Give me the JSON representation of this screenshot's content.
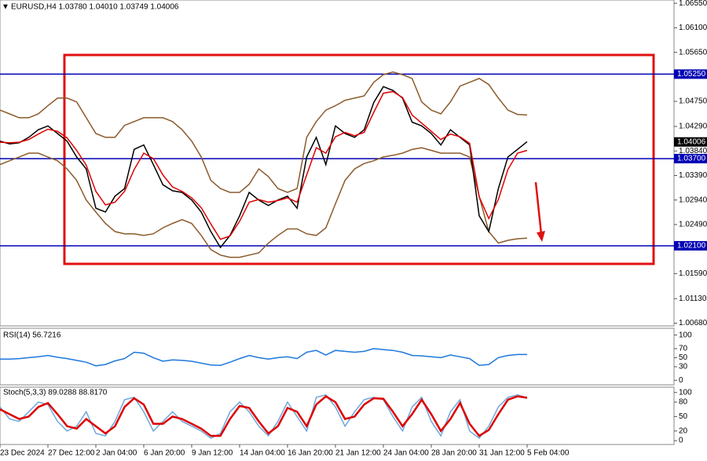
{
  "chart_data": [
    {
      "type": "line",
      "title": "EURUSD,H4 1.03780 1.04010 1.03749 1.04006",
      "categories": [
        "23 Dec 2024",
        null,
        null,
        null,
        null,
        "27 Dec 12:00",
        null,
        null,
        null,
        null,
        "2 Jan 04:00",
        null,
        null,
        null,
        null,
        "6 Jan 20:00",
        null,
        null,
        null,
        null,
        "9 Jan 12:00",
        null,
        null,
        null,
        null,
        "14 Jan 04:00",
        null,
        null,
        null,
        null,
        "16 Jan 20:00",
        null,
        null,
        null,
        null,
        "21 Jan 12:00",
        null,
        null,
        null,
        null,
        "24 Jan 04:00",
        null,
        null,
        null,
        null,
        "28 Jan 20:00",
        null,
        null,
        null,
        null,
        "31 Jan 12:00",
        null,
        null,
        null,
        null,
        "5 Feb 04:00"
      ],
      "ylim": [
        1.0063,
        1.0661
      ],
      "yticks": [
        {
          "value": 1.0655,
          "label": "1.06550"
        },
        {
          "value": 1.061,
          "label": "1.06100"
        },
        {
          "value": 1.0565,
          "label": "1.05650"
        },
        {
          "value": 1.0475,
          "label": "1.04750"
        },
        {
          "value": 1.0429,
          "label": "1.04290"
        },
        {
          "value": 1.0384,
          "label": "1.03840"
        },
        {
          "value": 1.0339,
          "label": "1.03390"
        },
        {
          "value": 1.0294,
          "label": "1.02940"
        },
        {
          "value": 1.0249,
          "label": "1.02490"
        },
        {
          "value": 1.0159,
          "label": "1.01590"
        },
        {
          "value": 1.0113,
          "label": "1.01130"
        },
        {
          "value": 1.0068,
          "label": "1.00680"
        }
      ],
      "levels": [
        {
          "value": 1.0525,
          "label": "1.05250"
        },
        {
          "value": 1.037,
          "label": "1.03700"
        },
        {
          "value": 1.021,
          "label": "1.02100"
        }
      ],
      "level_color": "#0000b4",
      "last_price": {
        "value": 1.04006,
        "label": "1.04006"
      },
      "series": [
        {
          "color": "#8b5a2b",
          "values": [
            1.0459,
            1.0452,
            1.0445,
            1.0445,
            1.0452,
            1.0467,
            1.0481,
            1.0481,
            1.0474,
            1.0445,
            1.0416,
            1.0409,
            1.0409,
            1.0431,
            1.0438,
            1.0445,
            1.0445,
            1.0445,
            1.0438,
            1.0423,
            1.0402,
            1.0373,
            1.033,
            1.0315,
            1.0308,
            1.0308,
            1.0323,
            1.0351,
            1.0337,
            1.0315,
            1.0308,
            1.0315,
            1.0409,
            1.0438,
            1.0459,
            1.0467,
            1.0477,
            1.0481,
            1.0485,
            1.051,
            1.0524,
            1.0529,
            1.0524,
            1.0517,
            1.0474,
            1.0459,
            1.0452,
            1.0474,
            1.0503,
            1.051,
            1.0517,
            1.0506,
            1.0481,
            1.0459,
            1.0451,
            1.045
          ]
        },
        {
          "color": "#8b5a2b",
          "values": [
            1.0359,
            1.0366,
            1.0373,
            1.038,
            1.038,
            1.0373,
            1.0366,
            1.0351,
            1.033,
            1.0294,
            1.0272,
            1.0251,
            1.0236,
            1.0232,
            1.0232,
            1.0229,
            1.0232,
            1.0243,
            1.0251,
            1.0258,
            1.0251,
            1.0229,
            1.0203,
            1.0193,
            1.0189,
            1.0189,
            1.0193,
            1.0197,
            1.0215,
            1.0229,
            1.0241,
            1.0241,
            1.0232,
            1.0229,
            1.0243,
            1.0287,
            1.033,
            1.0351,
            1.0361,
            1.0366,
            1.0373,
            1.0376,
            1.038,
            1.0387,
            1.039,
            1.0385,
            1.038,
            1.038,
            1.038,
            1.0373,
            1.0301,
            1.0236,
            1.0215,
            1.022,
            1.0223,
            1.0224
          ]
        },
        {
          "color": "#000000",
          "values": [
            1.0402,
            1.0397,
            1.0399,
            1.0409,
            1.0423,
            1.043,
            1.0416,
            1.0402,
            1.0373,
            1.0351,
            1.0279,
            1.0272,
            1.0301,
            1.0315,
            1.0387,
            1.0395,
            1.0359,
            1.0322,
            1.0311,
            1.0308,
            1.0294,
            1.0272,
            1.0236,
            1.0207,
            1.0229,
            1.0265,
            1.0308,
            1.0294,
            1.0284,
            1.0294,
            1.0301,
            1.0279,
            1.0373,
            1.0409,
            1.0359,
            1.043,
            1.0416,
            1.0409,
            1.0423,
            1.0473,
            1.0502,
            1.0495,
            1.0481,
            1.0437,
            1.043,
            1.0416,
            1.0395,
            1.0423,
            1.0409,
            1.0395,
            1.0265,
            1.0236,
            1.0315,
            1.0373,
            1.0387,
            1.0401
          ]
        },
        {
          "color": "#e00000",
          "values": [
            1.04,
            1.0399,
            1.04,
            1.0405,
            1.0415,
            1.0424,
            1.042,
            1.0408,
            1.0385,
            1.0358,
            1.031,
            1.0285,
            1.029,
            1.031,
            1.035,
            1.038,
            1.037,
            1.034,
            1.0318,
            1.031,
            1.0298,
            1.028,
            1.025,
            1.0222,
            1.0228,
            1.0255,
            1.029,
            1.0295,
            1.029,
            1.0293,
            1.0298,
            1.029,
            1.034,
            1.039,
            1.038,
            1.041,
            1.0418,
            1.0412,
            1.0418,
            1.0455,
            1.049,
            1.0493,
            1.0482,
            1.045,
            1.0435,
            1.042,
            1.0405,
            1.0415,
            1.041,
            1.0398,
            1.03,
            1.026,
            1.0295,
            1.035,
            1.038,
            1.0385
          ]
        }
      ]
    },
    {
      "type": "line",
      "title": "RSI(14) 56.7216",
      "ylim": [
        -10,
        115
      ],
      "yticks": [
        100,
        70,
        50,
        30,
        0
      ],
      "series": [
        {
          "color": "#1e78dc",
          "values": [
            47,
            47,
            48,
            50,
            52,
            55,
            51,
            48,
            44,
            40,
            32,
            35,
            43,
            48,
            62,
            60,
            50,
            42,
            45,
            44,
            42,
            38,
            34,
            33,
            40,
            48,
            55,
            50,
            47,
            50,
            52,
            48,
            62,
            66,
            56,
            66,
            64,
            62,
            64,
            70,
            68,
            66,
            62,
            55,
            54,
            52,
            50,
            56,
            52,
            48,
            33,
            35,
            50,
            55,
            57,
            57
          ]
        }
      ]
    },
    {
      "type": "line",
      "title": "Stoch(5,3,3) 89.0288 88.8170",
      "ylim": [
        -8,
        111
      ],
      "yticks": [
        100,
        80,
        50,
        20,
        0
      ],
      "series": [
        {
          "color": "#6fa8dc",
          "values": [
            70,
            45,
            40,
            60,
            80,
            75,
            40,
            20,
            30,
            60,
            15,
            10,
            40,
            85,
            90,
            60,
            20,
            40,
            60,
            40,
            30,
            20,
            5,
            15,
            60,
            80,
            60,
            30,
            10,
            40,
            80,
            50,
            20,
            90,
            95,
            70,
            30,
            60,
            85,
            90,
            85,
            50,
            20,
            70,
            90,
            40,
            10,
            60,
            85,
            20,
            5,
            30,
            70,
            90,
            95,
            89
          ]
        },
        {
          "color": "#dd0000",
          "values": [
            65,
            55,
            45,
            50,
            70,
            78,
            55,
            30,
            25,
            45,
            30,
            15,
            30,
            70,
            88,
            75,
            35,
            35,
            50,
            45,
            35,
            25,
            10,
            10,
            45,
            72,
            68,
            40,
            15,
            30,
            68,
            60,
            30,
            75,
            92,
            80,
            45,
            50,
            75,
            88,
            87,
            60,
            30,
            55,
            85,
            55,
            20,
            45,
            78,
            35,
            10,
            22,
            55,
            85,
            92,
            89
          ]
        }
      ]
    }
  ]
}
